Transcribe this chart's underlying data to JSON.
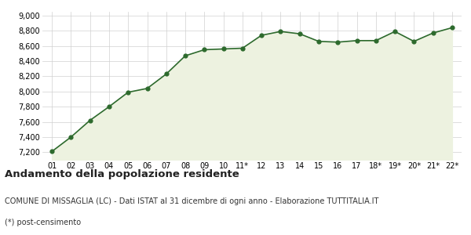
{
  "x_labels": [
    "01",
    "02",
    "03",
    "04",
    "05",
    "06",
    "07",
    "08",
    "09",
    "10",
    "11*",
    "12",
    "13",
    "14",
    "15",
    "16",
    "17",
    "18*",
    "19*",
    "20*",
    "21*",
    "22*"
  ],
  "y_values": [
    7210,
    7400,
    7620,
    7800,
    7990,
    8040,
    8230,
    8470,
    8550,
    8560,
    8570,
    8740,
    8790,
    8760,
    8660,
    8650,
    8670,
    8670,
    8790,
    8660,
    8770,
    8840
  ],
  "line_color": "#2d6a2d",
  "fill_color": "#edf2e0",
  "marker_color": "#2d6a2d",
  "background_color": "#ffffff",
  "grid_color": "#d0d0d0",
  "ylim": [
    7100,
    9050
  ],
  "yticks": [
    7200,
    7400,
    7600,
    7800,
    8000,
    8200,
    8400,
    8600,
    8800,
    9000
  ],
  "title": "Andamento della popolazione residente",
  "subtitle": "COMUNE DI MISSAGLIA (LC) - Dati ISTAT al 31 dicembre di ogni anno - Elaborazione TUTTITALIA.IT",
  "footnote": "(*) post-censimento",
  "title_fontsize": 9.5,
  "subtitle_fontsize": 7,
  "footnote_fontsize": 7
}
